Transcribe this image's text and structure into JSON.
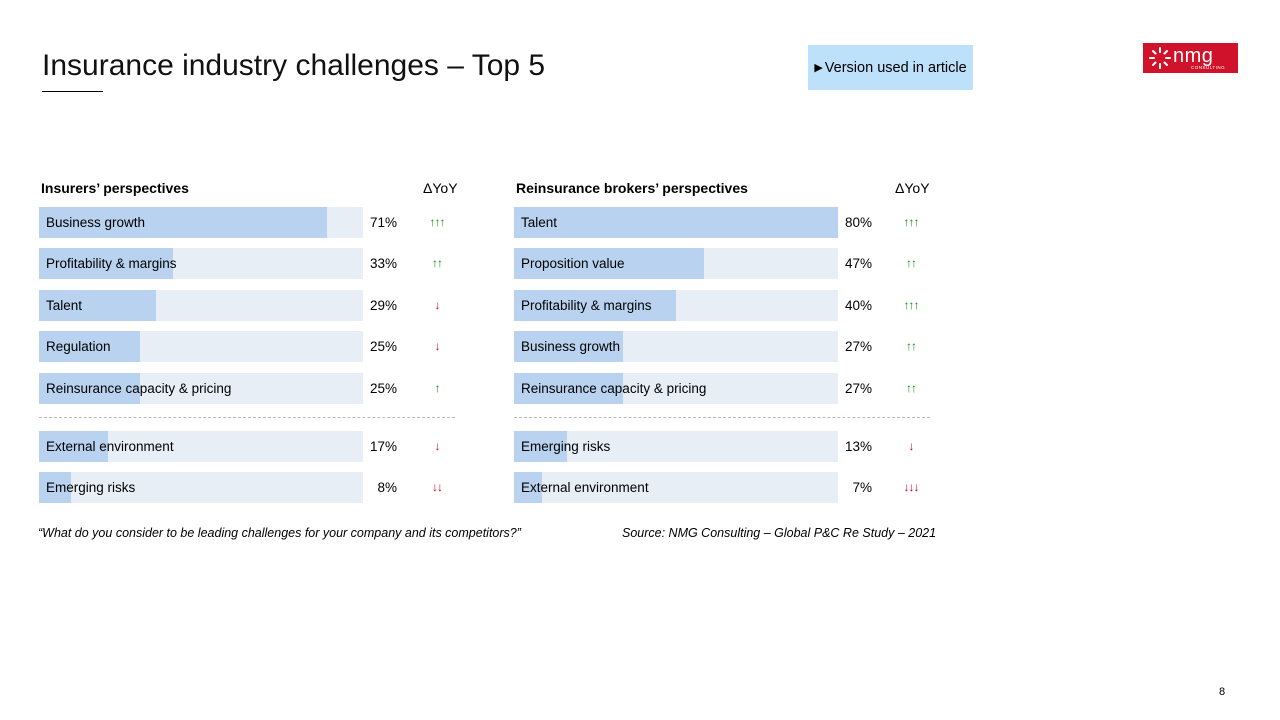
{
  "slide": {
    "title": "Insurance industry challenges – Top 5",
    "badge": "Version used in article",
    "logo_word": "nmg",
    "logo_sub": "CONSULTING",
    "page_number": "8",
    "question": "“What do you consider to be leading challenges for your company and its competitors?”",
    "source": "Source: NMG Consulting – Global P&C Re Study – 2021"
  },
  "chart_data": [
    {
      "type": "bar",
      "title": "Insurers’ perspectives",
      "delta_header": "ΔYoY",
      "top_n": 5,
      "categories": [
        "Business growth",
        "Profitability & margins",
        "Talent",
        "Regulation",
        "Reinsurance capacity & pricing",
        "External environment",
        "Emerging risks"
      ],
      "values": [
        71,
        33,
        29,
        25,
        25,
        17,
        8
      ],
      "labels": [
        "71%",
        "33%",
        "29%",
        "25%",
        "25%",
        "17%",
        "8%"
      ],
      "delta_yoy": [
        "↑↑↑",
        "↑↑",
        "↓",
        "↓",
        "↑",
        "↓",
        "↓↓"
      ],
      "delta_direction": [
        "up",
        "up",
        "down",
        "down",
        "up",
        "down",
        "down"
      ],
      "xlim": [
        0,
        80
      ]
    },
    {
      "type": "bar",
      "title": "Reinsurance brokers’ perspectives",
      "delta_header": "ΔYoY",
      "top_n": 5,
      "categories": [
        "Talent",
        "Proposition value",
        "Profitability & margins",
        "Business growth",
        "Reinsurance capacity & pricing",
        "Emerging risks",
        "External environment"
      ],
      "values": [
        80,
        47,
        40,
        27,
        27,
        13,
        7
      ],
      "labels": [
        "80%",
        "47%",
        "40%",
        "27%",
        "27%",
        "13%",
        "7%"
      ],
      "delta_yoy": [
        "↑↑↑",
        "↑↑",
        "↑↑↑",
        "↑↑",
        "↑↑",
        "↓",
        "↓↓↓"
      ],
      "delta_direction": [
        "up",
        "up",
        "up",
        "up",
        "up",
        "down",
        "down"
      ],
      "xlim": [
        0,
        80
      ]
    }
  ],
  "colors": {
    "bar_fill": "#b8d2ef",
    "bar_track": "#e7eef6",
    "up_arrow": "#1a8a1a",
    "down_arrow": "#d0021b",
    "badge_bg": "#bde0fb",
    "logo_bg": "#d0132a"
  }
}
